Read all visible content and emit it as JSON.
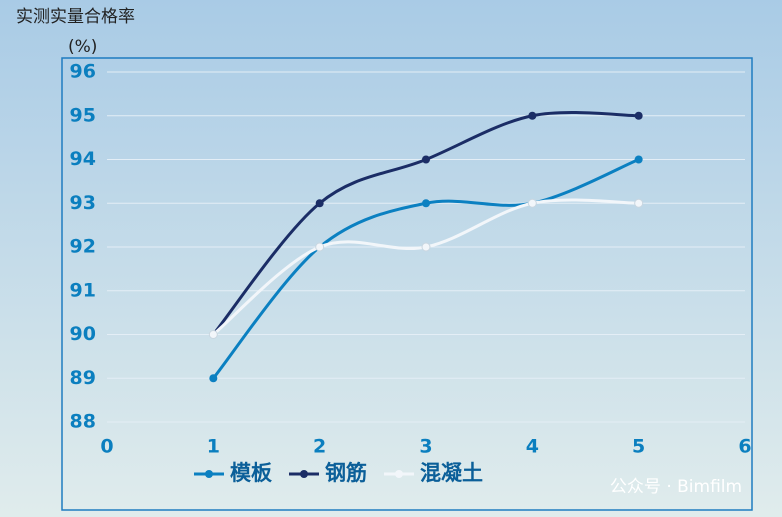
{
  "chart_data": {
    "type": "line",
    "title": "实测实量合格率",
    "ylabel": "(%)",
    "x": [
      1,
      2,
      3,
      4,
      5
    ],
    "series": [
      {
        "name": "模板",
        "color": "#0b80c1",
        "values": [
          89,
          92,
          93,
          93,
          94
        ]
      },
      {
        "name": "钢筋",
        "color": "#1b2d66",
        "values": [
          90,
          93,
          94,
          95,
          95
        ]
      },
      {
        "name": "混凝土",
        "color": "#f2f6fa",
        "values": [
          90,
          92,
          92,
          93,
          93
        ]
      }
    ],
    "xlim": [
      0,
      6
    ],
    "xticks": [
      0,
      1,
      2,
      3,
      4,
      5,
      6
    ],
    "ylim": [
      88,
      96
    ],
    "yticks": [
      88,
      89,
      90,
      91,
      92,
      93,
      94,
      95,
      96
    ],
    "grid": true,
    "smooth": true,
    "legend": "bottom"
  },
  "watermark": "公众号 · Bimfilm"
}
